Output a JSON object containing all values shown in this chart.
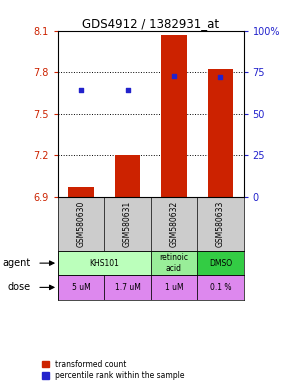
{
  "title": "GDS4912 / 1382931_at",
  "samples": [
    "GSM580630",
    "GSM580631",
    "GSM580632",
    "GSM580633"
  ],
  "bar_bottom": 6.9,
  "bar_tops": [
    6.97,
    7.2,
    8.07,
    7.82
  ],
  "percentile_values": [
    64,
    64,
    73,
    72
  ],
  "ylim": [
    6.9,
    8.1
  ],
  "yticks_left": [
    6.9,
    7.2,
    7.5,
    7.8,
    8.1
  ],
  "yticks_right": [
    0,
    25,
    50,
    75,
    100
  ],
  "ytick_right_labels": [
    "0",
    "25",
    "50",
    "75",
    "100%"
  ],
  "bar_color": "#cc2200",
  "dot_color": "#2222cc",
  "dose_labels": [
    "5 uM",
    "1.7 uM",
    "1 uM",
    "0.1 %"
  ],
  "dose_color": "#dd88ee",
  "agent_defs": [
    [
      0,
      2,
      "KHS101",
      "#bbffbb"
    ],
    [
      2,
      3,
      "retinoic\nacid",
      "#99ee99"
    ],
    [
      3,
      4,
      "DMSO",
      "#33cc44"
    ]
  ],
  "legend_red_label": "transformed count",
  "legend_blue_label": "percentile rank within the sample",
  "left_label_color": "#cc2200",
  "right_label_color": "#2222cc",
  "grid_lines": [
    7.2,
    7.5,
    7.8
  ]
}
